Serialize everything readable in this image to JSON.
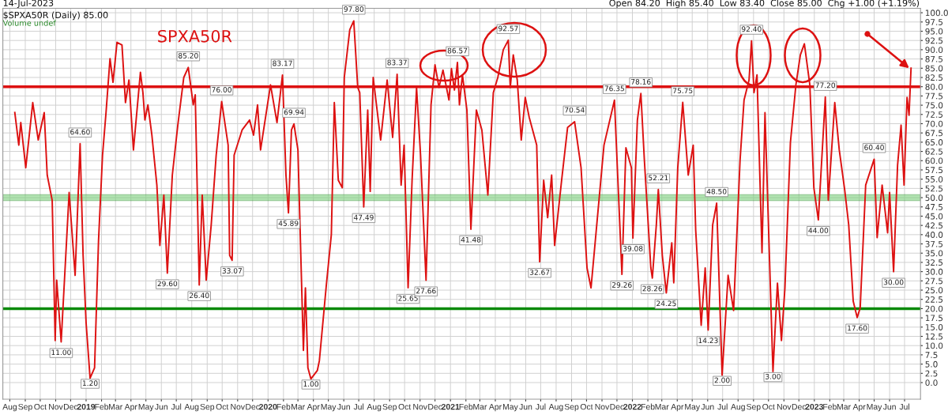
{
  "chart_data": {
    "type": "line",
    "title": "SPXA50R",
    "annotations": [
      "$SPXA50R (Daily) 85.00",
      "Volume undef",
      "14-Jul-2023",
      "Open 84.20  High 85.40  Low 83.40  Close 85.00  Chg +1.00 (+1.19%)"
    ],
    "x": [
      "2018-08-11",
      "2018-08-19",
      "2018-08-23",
      "2018-09-02",
      "2018-09-16",
      "2018-09-27",
      "2018-10-09",
      "2018-10-15",
      "2018-10-25",
      "2018-10-31",
      "2018-11-03",
      "2018-11-12",
      "2018-11-28",
      "2018-12-10",
      "2018-12-20",
      "2018-12-26",
      "2019-01-01",
      "2019-01-09",
      "2019-01-18",
      "2019-01-26",
      "2019-02-03",
      "2019-02-10",
      "2019-02-18",
      "2019-02-24",
      "2019-03-04",
      "2019-03-14",
      "2019-03-21",
      "2019-03-28",
      "2019-04-06",
      "2019-04-20",
      "2019-04-25",
      "2019-04-29",
      "2019-05-05",
      "2019-05-13",
      "2019-05-23",
      "2019-05-29",
      "2019-06-06",
      "2019-06-13",
      "2019-06-23",
      "2019-07-04",
      "2019-07-16",
      "2019-07-25",
      "2019-08-04",
      "2019-08-08",
      "2019-08-16",
      "2019-08-22",
      "2019-08-30",
      "2019-09-09",
      "2019-09-19",
      "2019-09-30",
      "2019-10-13",
      "2019-10-16",
      "2019-10-21",
      "2019-10-25",
      "2019-11-10",
      "2019-11-25",
      "2019-12-03",
      "2019-12-11",
      "2019-12-17",
      "2020-01-06",
      "2020-01-19",
      "2020-01-30",
      "2020-02-06",
      "2020-02-11",
      "2020-02-17",
      "2020-02-22",
      "2020-03-01",
      "2020-03-12",
      "2020-03-16",
      "2020-03-21",
      "2020-03-27",
      "2020-04-09",
      "2020-04-13",
      "2020-04-27",
      "2020-05-07",
      "2020-05-13",
      "2020-05-21",
      "2020-05-29",
      "2020-06-02",
      "2020-06-13",
      "2020-06-21",
      "2020-06-29",
      "2020-07-03",
      "2020-07-11",
      "2020-07-19",
      "2020-07-24",
      "2020-07-30",
      "2020-08-14",
      "2020-08-27",
      "2020-09-07",
      "2020-09-16",
      "2020-09-24",
      "2020-09-30",
      "2020-10-08",
      "2020-10-16",
      "2020-10-25",
      "2020-11-02",
      "2020-11-13",
      "2020-11-23",
      "2020-12-01",
      "2020-12-09",
      "2020-12-17",
      "2020-12-29",
      "2021-01-03",
      "2021-01-09",
      "2021-01-15",
      "2021-01-19",
      "2021-01-25",
      "2021-02-03",
      "2021-02-11",
      "2021-02-22",
      "2021-03-05",
      "2021-03-17",
      "2021-03-28",
      "2021-04-06",
      "2021-04-17",
      "2021-04-27",
      "2021-05-01",
      "2021-05-07",
      "2021-05-15",
      "2021-05-23",
      "2021-05-31",
      "2021-06-08",
      "2021-06-23",
      "2021-06-29",
      "2021-07-07",
      "2021-07-15",
      "2021-07-23",
      "2021-07-29",
      "2021-08-12",
      "2021-08-24",
      "2021-09-07",
      "2021-09-20",
      "2021-10-02",
      "2021-10-10",
      "2021-11-05",
      "2021-11-26",
      "2021-12-11",
      "2021-12-19",
      "2021-12-30",
      "2022-01-02",
      "2022-01-11",
      "2022-01-18",
      "2022-01-25",
      "2022-02-07",
      "2022-02-10",
      "2022-02-18",
      "2022-02-22",
      "2022-03-02",
      "2022-03-10",
      "2022-03-21",
      "2022-03-25",
      "2022-04-02",
      "2022-04-12",
      "2022-04-23",
      "2022-05-03",
      "2022-05-08",
      "2022-05-19",
      "2022-05-27",
      "2022-06-02",
      "2022-06-11",
      "2022-06-19",
      "2022-06-30",
      "2022-07-12",
      "2022-07-23",
      "2022-08-05",
      "2022-08-13",
      "2022-08-23",
      "2022-08-28",
      "2022-09-02",
      "2022-09-08",
      "2022-09-18",
      "2022-09-24",
      "2022-10-10",
      "2022-10-19",
      "2022-10-27",
      "2022-11-03",
      "2022-11-14",
      "2022-11-25",
      "2022-12-04",
      "2022-12-12",
      "2022-12-23",
      "2022-12-31",
      "2023-01-09",
      "2023-01-23",
      "2023-01-29",
      "2023-02-11",
      "2023-02-20",
      "2023-03-03",
      "2023-03-11",
      "2023-03-20",
      "2023-03-28",
      "2023-04-03",
      "2023-04-14",
      "2023-05-01",
      "2023-05-07",
      "2023-05-17",
      "2023-05-28",
      "2023-06-01",
      "2023-06-09",
      "2023-06-17",
      "2023-06-24",
      "2023-06-30",
      "2023-07-06",
      "2023-07-10",
      "2023-07-14"
    ],
    "series": [
      {
        "color": "#dd1111",
        "values": [
          73.0,
          64.2,
          70.3,
          58.1,
          75.7,
          65.6,
          73.0,
          56.1,
          49.3,
          11.4,
          27.7,
          11.0,
          51.4,
          29.0,
          64.6,
          34.4,
          16.2,
          1.2,
          4.0,
          38.5,
          61.5,
          73.0,
          87.6,
          81.2,
          92.0,
          91.3,
          75.7,
          81.8,
          62.9,
          83.9,
          78.4,
          71.0,
          75.1,
          66.9,
          53.4,
          37.1,
          50.7,
          29.6,
          56.1,
          69.6,
          82.5,
          85.2,
          75.1,
          77.8,
          26.4,
          50.7,
          27.7,
          42.6,
          61.5,
          76.0,
          64.2,
          34.4,
          33.07,
          61.5,
          68.3,
          71.0,
          66.9,
          75.1,
          62.9,
          80.5,
          70.3,
          83.17,
          56.1,
          45.89,
          68.3,
          69.94,
          62.9,
          8.7,
          25.6,
          4.0,
          1.0,
          3.3,
          5.9,
          26.4,
          40.0,
          75.7,
          54.7,
          52.7,
          82.5,
          95.4,
          97.8,
          79.8,
          78.4,
          47.49,
          73.7,
          51.7,
          82.5,
          65.6,
          81.8,
          66.3,
          83.37,
          53.4,
          64.2,
          25.65,
          54.7,
          79.7,
          61.5,
          27.66,
          75.1,
          85.9,
          79.8,
          84.5,
          76.4,
          84.9,
          79.1,
          86.57,
          75.1,
          83.2,
          73.7,
          41.48,
          73.7,
          68.3,
          50.7,
          78.4,
          82.5,
          90.0,
          92.57,
          79.8,
          88.6,
          81.8,
          65.6,
          77.1,
          71.7,
          64.2,
          32.67,
          54.7,
          44.6,
          56.1,
          37.1,
          54.7,
          69.0,
          70.54,
          58.1,
          31.0,
          25.6,
          64.2,
          76.35,
          29.26,
          63.5,
          58.1,
          39.08,
          71.0,
          78.16,
          60.2,
          31.0,
          28.26,
          42.6,
          52.21,
          34.4,
          24.25,
          37.8,
          27.0,
          58.1,
          75.75,
          56.1,
          64.2,
          41.2,
          15.5,
          31.0,
          14.23,
          42.6,
          48.5,
          2.0,
          29.0,
          19.5,
          60.2,
          76.4,
          81.8,
          92.4,
          78.4,
          83.2,
          35.1,
          73.0,
          3.0,
          26.9,
          11.4,
          25.6,
          64.9,
          80.5,
          88.6,
          91.6,
          80.5,
          52.7,
          44.0,
          77.2,
          49.3,
          75.7,
          62.9,
          52.0,
          42.6,
          22.0,
          17.6,
          20.2,
          53.4,
          60.4,
          39.2,
          53.4,
          40.5,
          51.4,
          30.0,
          58.8,
          69.6,
          53.4,
          77.1,
          72.3,
          85.0
        ],
        "value_labels": [
          null,
          null,
          null,
          null,
          null,
          null,
          null,
          null,
          null,
          null,
          null,
          "11.00",
          null,
          null,
          "64.60",
          null,
          null,
          "1.20",
          null,
          null,
          null,
          null,
          null,
          null,
          null,
          null,
          null,
          null,
          null,
          null,
          null,
          null,
          null,
          null,
          null,
          null,
          null,
          "29.60",
          null,
          null,
          null,
          "85.20",
          null,
          null,
          "26.40",
          null,
          null,
          null,
          null,
          "76.00",
          null,
          null,
          "33.07",
          null,
          null,
          null,
          null,
          null,
          null,
          null,
          null,
          "83.17",
          null,
          "45.89",
          null,
          "69.94",
          null,
          null,
          null,
          null,
          "1.00",
          null,
          null,
          null,
          null,
          null,
          null,
          null,
          null,
          null,
          "97.80",
          null,
          null,
          "47.49",
          null,
          null,
          null,
          null,
          null,
          null,
          "83.37",
          null,
          null,
          "25.65",
          null,
          null,
          null,
          "27.66",
          null,
          null,
          null,
          null,
          null,
          null,
          null,
          "86.57",
          null,
          null,
          null,
          "41.48",
          null,
          null,
          null,
          null,
          null,
          null,
          "92.57",
          null,
          null,
          null,
          null,
          null,
          null,
          null,
          "32.67",
          null,
          null,
          null,
          null,
          null,
          null,
          "70.54",
          null,
          null,
          null,
          null,
          "76.35",
          "29.26",
          null,
          null,
          "39.08",
          null,
          "78.16",
          null,
          null,
          "28.26",
          null,
          "52.21",
          null,
          "24.25",
          null,
          null,
          null,
          "75.75",
          null,
          null,
          null,
          null,
          null,
          "14.23",
          null,
          "48.50",
          "2.00",
          null,
          null,
          null,
          null,
          null,
          "92.40",
          null,
          null,
          null,
          null,
          "3.00",
          null,
          null,
          null,
          null,
          null,
          null,
          null,
          null,
          null,
          "44.00",
          "77.20",
          null,
          null,
          null,
          null,
          null,
          null,
          "17.60",
          null,
          null,
          "60.40",
          null,
          null,
          null,
          null,
          "30.00",
          null,
          null,
          null,
          null,
          null,
          null
        ]
      }
    ],
    "xlim": [
      "2018-07-18",
      "2023-08-02"
    ],
    "xticks": [
      {
        "value": "2018-08-01",
        "label": "Aug"
      },
      {
        "value": "2018-09-01",
        "label": "Sep"
      },
      {
        "value": "2018-10-01",
        "label": "Oct"
      },
      {
        "value": "2018-11-01",
        "label": "Nov"
      },
      {
        "value": "2018-12-01",
        "label": "Dec"
      },
      {
        "value": "2019-01-01",
        "label": "2019"
      },
      {
        "value": "2019-02-01",
        "label": "Feb"
      },
      {
        "value": "2019-03-01",
        "label": "Mar"
      },
      {
        "value": "2019-04-01",
        "label": "Apr"
      },
      {
        "value": "2019-05-01",
        "label": "May"
      },
      {
        "value": "2019-06-01",
        "label": "Jun"
      },
      {
        "value": "2019-07-01",
        "label": "Jul"
      },
      {
        "value": "2019-08-01",
        "label": "Aug"
      },
      {
        "value": "2019-09-01",
        "label": "Sep"
      },
      {
        "value": "2019-10-01",
        "label": "Oct"
      },
      {
        "value": "2019-11-01",
        "label": "Nov"
      },
      {
        "value": "2019-12-01",
        "label": "Dec"
      },
      {
        "value": "2020-01-01",
        "label": "2020"
      },
      {
        "value": "2020-02-01",
        "label": "Feb"
      },
      {
        "value": "2020-03-01",
        "label": "Mar"
      },
      {
        "value": "2020-04-01",
        "label": "Apr"
      },
      {
        "value": "2020-05-01",
        "label": "May"
      },
      {
        "value": "2020-06-01",
        "label": "Jun"
      },
      {
        "value": "2020-07-01",
        "label": "Jul"
      },
      {
        "value": "2020-08-01",
        "label": "Aug"
      },
      {
        "value": "2020-09-01",
        "label": "Sep"
      },
      {
        "value": "2020-10-01",
        "label": "Oct"
      },
      {
        "value": "2020-11-01",
        "label": "Nov"
      },
      {
        "value": "2020-12-01",
        "label": "Dec"
      },
      {
        "value": "2021-01-01",
        "label": "2021"
      },
      {
        "value": "2021-02-01",
        "label": "Feb"
      },
      {
        "value": "2021-03-01",
        "label": "Mar"
      },
      {
        "value": "2021-04-01",
        "label": "Apr"
      },
      {
        "value": "2021-05-01",
        "label": "May"
      },
      {
        "value": "2021-06-01",
        "label": "Jun"
      },
      {
        "value": "2021-07-01",
        "label": "Jul"
      },
      {
        "value": "2021-08-01",
        "label": "Aug"
      },
      {
        "value": "2021-09-01",
        "label": "Sep"
      },
      {
        "value": "2021-10-01",
        "label": "Oct"
      },
      {
        "value": "2021-11-01",
        "label": "Nov"
      },
      {
        "value": "2021-12-01",
        "label": "Dec"
      },
      {
        "value": "2022-01-01",
        "label": "2022"
      },
      {
        "value": "2022-02-01",
        "label": "Feb"
      },
      {
        "value": "2022-03-01",
        "label": "Mar"
      },
      {
        "value": "2022-04-01",
        "label": "Apr"
      },
      {
        "value": "2022-05-01",
        "label": "May"
      },
      {
        "value": "2022-06-01",
        "label": "Jun"
      },
      {
        "value": "2022-07-01",
        "label": "Jul"
      },
      {
        "value": "2022-08-01",
        "label": "Aug"
      },
      {
        "value": "2022-09-01",
        "label": "Sep"
      },
      {
        "value": "2022-10-01",
        "label": "Oct"
      },
      {
        "value": "2022-11-01",
        "label": "Nov"
      },
      {
        "value": "2022-12-01",
        "label": "Dec"
      },
      {
        "value": "2023-01-01",
        "label": "2023"
      },
      {
        "value": "2023-02-01",
        "label": "Feb"
      },
      {
        "value": "2023-03-01",
        "label": "Mar"
      },
      {
        "value": "2023-04-01",
        "label": "Apr"
      },
      {
        "value": "2023-05-01",
        "label": "May"
      },
      {
        "value": "2023-06-01",
        "label": "Jun"
      },
      {
        "value": "2023-07-01",
        "label": "Jul"
      }
    ],
    "ylim": [
      -4.5,
      101.2
    ],
    "yticks": [
      {
        "value": 0,
        "label": "0.0"
      },
      {
        "value": 2.5,
        "label": "2.5"
      },
      {
        "value": 5,
        "label": "5.0"
      },
      {
        "value": 7.5,
        "label": "7.5"
      },
      {
        "value": 10,
        "label": "10.0"
      },
      {
        "value": 12.5,
        "label": "12.5"
      },
      {
        "value": 15,
        "label": "15.0"
      },
      {
        "value": 17.5,
        "label": "17.5"
      },
      {
        "value": 20,
        "label": "20.0"
      },
      {
        "value": 22.5,
        "label": "22.5"
      },
      {
        "value": 25,
        "label": "25.0"
      },
      {
        "value": 27.5,
        "label": "27.5"
      },
      {
        "value": 30,
        "label": "30.0"
      },
      {
        "value": 32.5,
        "label": "32.5"
      },
      {
        "value": 35,
        "label": "35.0"
      },
      {
        "value": 37.5,
        "label": "37.5"
      },
      {
        "value": 40,
        "label": "40.0"
      },
      {
        "value": 42.5,
        "label": "42.5"
      },
      {
        "value": 45,
        "label": "45.0"
      },
      {
        "value": 47.5,
        "label": "47.5"
      },
      {
        "value": 50,
        "label": "50.0"
      },
      {
        "value": 52.5,
        "label": "52.5"
      },
      {
        "value": 55,
        "label": "55.0"
      },
      {
        "value": 57.5,
        "label": "57.5"
      },
      {
        "value": 60,
        "label": "60.0"
      },
      {
        "value": 62.5,
        "label": "62.5"
      },
      {
        "value": 65,
        "label": "65.0"
      },
      {
        "value": 67.5,
        "label": "67.5"
      },
      {
        "value": 70,
        "label": "70.0"
      },
      {
        "value": 72.5,
        "label": "72.5"
      },
      {
        "value": 75,
        "label": "75.0"
      },
      {
        "value": 77.5,
        "label": "77.5"
      },
      {
        "value": 80,
        "label": "80.0"
      },
      {
        "value": 82.5,
        "label": "82.5"
      },
      {
        "value": 85,
        "label": "85.0"
      },
      {
        "value": 87.5,
        "label": "87.5"
      },
      {
        "value": 90,
        "label": "90.0"
      },
      {
        "value": 92.5,
        "label": "92.5"
      },
      {
        "value": 95,
        "label": "95.0"
      },
      {
        "value": 97.5,
        "label": "97.5"
      },
      {
        "value": 100,
        "label": "100.0"
      }
    ],
    "ref_lines": [
      {
        "axis": "y",
        "value": 80,
        "color": "#dd1111"
      },
      {
        "axis": "y",
        "value": 20,
        "color": "#0a8a0a"
      }
    ],
    "bands": [
      {
        "axis": "y",
        "from": 49.2,
        "to": 50.8,
        "color": "#7ccf7c"
      }
    ],
    "grid": true,
    "legend": false,
    "marker": "none",
    "line_style": "solid"
  }
}
